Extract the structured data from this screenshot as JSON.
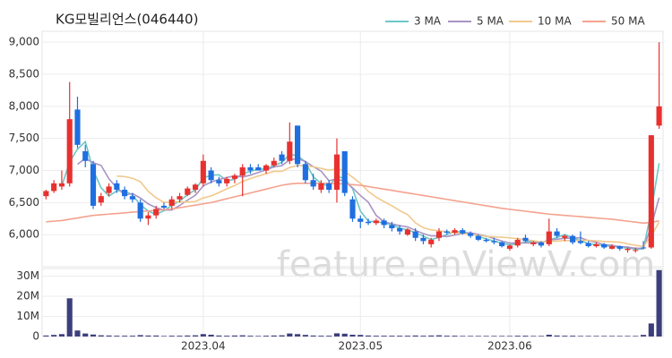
{
  "chart_data": {
    "type": "candlestick",
    "title": "KG모빌리언스(046440)",
    "watermark": "feature.enViewV.com",
    "categories": [
      null,
      null,
      null,
      null,
      null,
      null,
      null,
      null,
      null,
      null,
      null,
      null,
      null,
      null,
      null,
      null,
      null,
      null,
      null,
      null,
      "2023.04",
      null,
      null,
      null,
      null,
      null,
      null,
      null,
      null,
      null,
      null,
      null,
      null,
      null,
      null,
      null,
      null,
      null,
      null,
      null,
      "2023.05",
      null,
      null,
      null,
      null,
      null,
      null,
      null,
      null,
      null,
      null,
      null,
      null,
      null,
      null,
      null,
      null,
      null,
      null,
      "2023.06",
      null,
      null,
      null,
      null,
      null,
      null,
      null,
      null,
      null,
      null,
      null,
      null,
      null,
      null,
      null,
      null,
      null,
      null,
      null
    ],
    "open": [
      6600,
      6680,
      6750,
      6800,
      7950,
      7300,
      7100,
      6500,
      6650,
      6800,
      6700,
      6600,
      6500,
      6250,
      6300,
      6450,
      6450,
      6550,
      6620,
      6700,
      6800,
      7000,
      6850,
      6800,
      6870,
      6920,
      7050,
      7050,
      7000,
      7080,
      7250,
      7150,
      7700,
      7100,
      6850,
      6700,
      6800,
      6700,
      7300,
      6550,
      6250,
      6200,
      6180,
      6220,
      6150,
      6100,
      6000,
      6050,
      5950,
      5850,
      5950,
      6050,
      6030,
      6070,
      6020,
      5980,
      5920,
      5900,
      5880,
      5780,
      5830,
      5950,
      5850,
      5880,
      5850,
      6050,
      5950,
      5980,
      5900,
      5870,
      5820,
      5850,
      5780,
      5820,
      5760,
      5750,
      5800,
      5800,
      7700
    ],
    "high": [
      6700,
      6850,
      7000,
      8380,
      8150,
      7400,
      7150,
      6650,
      6800,
      6850,
      6750,
      6650,
      6550,
      6350,
      6450,
      6500,
      6600,
      6650,
      6750,
      6800,
      7250,
      7050,
      6900,
      6900,
      6950,
      7100,
      7100,
      7100,
      7100,
      7200,
      7300,
      7750,
      7700,
      7150,
      6950,
      6850,
      6850,
      7500,
      7300,
      6600,
      6300,
      6250,
      6250,
      6250,
      6200,
      6150,
      6100,
      6100,
      6000,
      5950,
      6100,
      6080,
      6100,
      6100,
      6050,
      6000,
      5950,
      5950,
      5900,
      5850,
      5950,
      6000,
      5900,
      5900,
      6250,
      6100,
      6000,
      6000,
      6050,
      5900,
      5880,
      5870,
      5850,
      5830,
      5800,
      5800,
      5900,
      7550,
      9000
    ],
    "low": [
      6550,
      6650,
      6700,
      6750,
      7350,
      7050,
      6400,
      6450,
      6600,
      6650,
      6550,
      6500,
      6200,
      6150,
      6250,
      6400,
      6400,
      6500,
      6600,
      6650,
      6750,
      6800,
      6750,
      6750,
      6800,
      6600,
      6950,
      7000,
      6950,
      7050,
      7100,
      7100,
      7050,
      6800,
      6700,
      6650,
      6650,
      6500,
      6600,
      6200,
      6100,
      6150,
      6150,
      6100,
      6050,
      6000,
      5980,
      5900,
      5850,
      5800,
      5900,
      6000,
      6000,
      6000,
      5950,
      5900,
      5880,
      5850,
      5800,
      5750,
      5800,
      5880,
      5820,
      5800,
      5820,
      5950,
      5900,
      5850,
      5850,
      5800,
      5800,
      5780,
      5770,
      5750,
      5720,
      5720,
      5780,
      5780,
      7650
    ],
    "close": [
      6680,
      6800,
      6800,
      7800,
      7400,
      7150,
      6450,
      6600,
      6750,
      6700,
      6600,
      6550,
      6250,
      6300,
      6400,
      6420,
      6550,
      6600,
      6720,
      6780,
      7150,
      6850,
      6800,
      6870,
      6920,
      7050,
      7000,
      7000,
      7080,
      7150,
      7150,
      7450,
      7100,
      6850,
      6750,
      6800,
      6700,
      7250,
      6650,
      6250,
      6200,
      6180,
      6220,
      6150,
      6100,
      6050,
      6080,
      5950,
      5900,
      5920,
      6050,
      6030,
      6070,
      6020,
      5980,
      5920,
      5900,
      5880,
      5820,
      5830,
      5920,
      5900,
      5880,
      5830,
      6050,
      5980,
      5980,
      5880,
      5870,
      5820,
      5850,
      5800,
      5820,
      5780,
      5780,
      5760,
      5790,
      7550,
      8000
    ],
    "up_color": "#e8312f",
    "down_color": "#1f6fe0",
    "ylim": [
      5500,
      9170
    ],
    "yticks": [
      {
        "value": 6000,
        "label": "6,000"
      },
      {
        "value": 6500,
        "label": "6,500"
      },
      {
        "value": 7000,
        "label": "7,000"
      },
      {
        "value": 7500,
        "label": "7,500"
      },
      {
        "value": 8000,
        "label": "8,000"
      },
      {
        "value": 8500,
        "label": "8,500"
      },
      {
        "value": 9000,
        "label": "9,000"
      }
    ],
    "grid": true,
    "moving_averages": [
      {
        "name": "3 MA",
        "color": "#6cc8c6",
        "values": [
          null,
          null,
          6760,
          7133,
          7333,
          7450,
          7000,
          6733,
          6600,
          6683,
          6683,
          6617,
          6467,
          6367,
          6317,
          6373,
          6457,
          6523,
          6623,
          6700,
          6883,
          6927,
          6933,
          6840,
          6863,
          6947,
          6990,
          7017,
          7027,
          7077,
          7127,
          7250,
          7233,
          7133,
          6900,
          6800,
          6750,
          6917,
          6867,
          6717,
          6367,
          6210,
          6200,
          6183,
          6157,
          6100,
          6077,
          6027,
          5977,
          5923,
          5957,
          6000,
          6050,
          6040,
          6023,
          5973,
          5933,
          5900,
          5867,
          5843,
          5857,
          5883,
          5900,
          5870,
          5920,
          5953,
          6003,
          5947,
          5910,
          5857,
          5847,
          5823,
          5823,
          5800,
          5793,
          5773,
          5777,
          6367,
          7113
        ]
      },
      {
        "name": "5 MA",
        "color": "#a894c4",
        "values": [
          null,
          null,
          null,
          null,
          7096,
          7190,
          7120,
          7080,
          6870,
          6730,
          6620,
          6640,
          6570,
          6480,
          6420,
          6384,
          6384,
          6454,
          6538,
          6614,
          6760,
          6820,
          6860,
          6890,
          6918,
          6898,
          6928,
          6968,
          7010,
          7056,
          7076,
          7166,
          7186,
          7140,
          7060,
          6990,
          6840,
          6870,
          6830,
          6730,
          6610,
          6506,
          6300,
          6200,
          6170,
          6140,
          6120,
          6066,
          6016,
          5980,
          5980,
          5970,
          5994,
          6018,
          6030,
          6004,
          5978,
          5940,
          5900,
          5870,
          5870,
          5870,
          5870,
          5872,
          5916,
          5928,
          5944,
          5944,
          5952,
          5906,
          5880,
          5844,
          5832,
          5814,
          5806,
          5788,
          5786,
          6132,
          6576
        ]
      },
      {
        "name": "10 MA",
        "color": "#f1c98c",
        "values": [
          null,
          null,
          null,
          null,
          null,
          null,
          null,
          null,
          null,
          6913,
          6905,
          6880,
          6825,
          6675,
          6575,
          6502,
          6512,
          6512,
          6509,
          6517,
          6572,
          6602,
          6657,
          6714,
          6766,
          6829,
          6874,
          6914,
          6950,
          6987,
          6987,
          7047,
          7077,
          7075,
          7058,
          7033,
          7003,
          7028,
          6985,
          6895,
          6800,
          6673,
          6585,
          6515,
          6450,
          6375,
          6313,
          6183,
          6108,
          6075,
          6060,
          6045,
          6030,
          6017,
          6005,
          5992,
          5974,
          5967,
          5959,
          5950,
          5937,
          5924,
          5905,
          5886,
          5893,
          5899,
          5907,
          5907,
          5912,
          5911,
          5904,
          5894,
          5888,
          5883,
          5856,
          5834,
          5815,
          5982,
          6195
        ]
      },
      {
        "name": "50 MA",
        "color": "#f4a28e",
        "values": [
          6200,
          6210,
          6220,
          6240,
          6260,
          6280,
          6300,
          6310,
          6320,
          6330,
          6340,
          6350,
          6360,
          6370,
          6380,
          6390,
          6400,
          6420,
          6440,
          6460,
          6480,
          6500,
          6530,
          6560,
          6590,
          6620,
          6650,
          6680,
          6710,
          6740,
          6770,
          6790,
          6800,
          6800,
          6800,
          6800,
          6800,
          6795,
          6790,
          6780,
          6770,
          6750,
          6730,
          6710,
          6690,
          6670,
          6650,
          6630,
          6610,
          6590,
          6570,
          6550,
          6530,
          6510,
          6490,
          6470,
          6450,
          6430,
          6410,
          6395,
          6380,
          6365,
          6350,
          6335,
          6320,
          6310,
          6300,
          6290,
          6280,
          6270,
          6260,
          6250,
          6240,
          6225,
          6210,
          6195,
          6180,
          6190,
          6215
        ]
      }
    ],
    "volume": {
      "color": "#3d3f7c",
      "values": [
        0.5,
        0.8,
        1.2,
        19,
        3,
        1.5,
        1,
        0.6,
        0.5,
        0.4,
        0.4,
        0.4,
        0.7,
        0.5,
        0.5,
        0.3,
        0.4,
        0.4,
        0.5,
        0.6,
        1.2,
        0.9,
        0.5,
        0.4,
        0.5,
        0.6,
        0.4,
        0.3,
        0.4,
        0.5,
        0.6,
        1.5,
        1.2,
        0.8,
        0.5,
        0.4,
        0.4,
        1.6,
        1.4,
        0.9,
        0.8,
        0.5,
        0.4,
        0.4,
        0.4,
        0.4,
        0.4,
        0.5,
        0.4,
        0.5,
        0.6,
        0.4,
        0.4,
        0.3,
        0.3,
        0.3,
        0.3,
        0.3,
        0.3,
        0.3,
        0.4,
        0.4,
        0.3,
        0.3,
        0.9,
        0.5,
        0.4,
        0.4,
        0.3,
        0.3,
        0.3,
        0.3,
        0.3,
        0.3,
        0.3,
        0.3,
        0.8,
        6.5,
        33
      ],
      "ylim": [
        0,
        33.8
      ],
      "yticks": [
        0,
        {
          "value": 10,
          "label": "10M"
        },
        {
          "value": 20,
          "label": "20M"
        },
        {
          "value": 30,
          "label": "30M"
        }
      ]
    }
  }
}
